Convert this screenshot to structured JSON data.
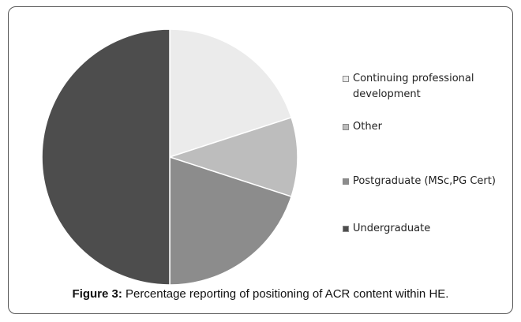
{
  "chart_data": {
    "type": "pie",
    "caption_label": "Figure 3:",
    "title": "Percentage reporting of positioning of ACR content within HE.",
    "categories": [
      "Continuing professional development",
      "Other",
      "Postgraduate (MSc,PG Cert)",
      "Undergraduate"
    ],
    "values": [
      20,
      10,
      20,
      50
    ],
    "colors": [
      "#ebebeb",
      "#bdbdbd",
      "#8c8c8c",
      "#4d4d4d"
    ],
    "legend": "right"
  }
}
